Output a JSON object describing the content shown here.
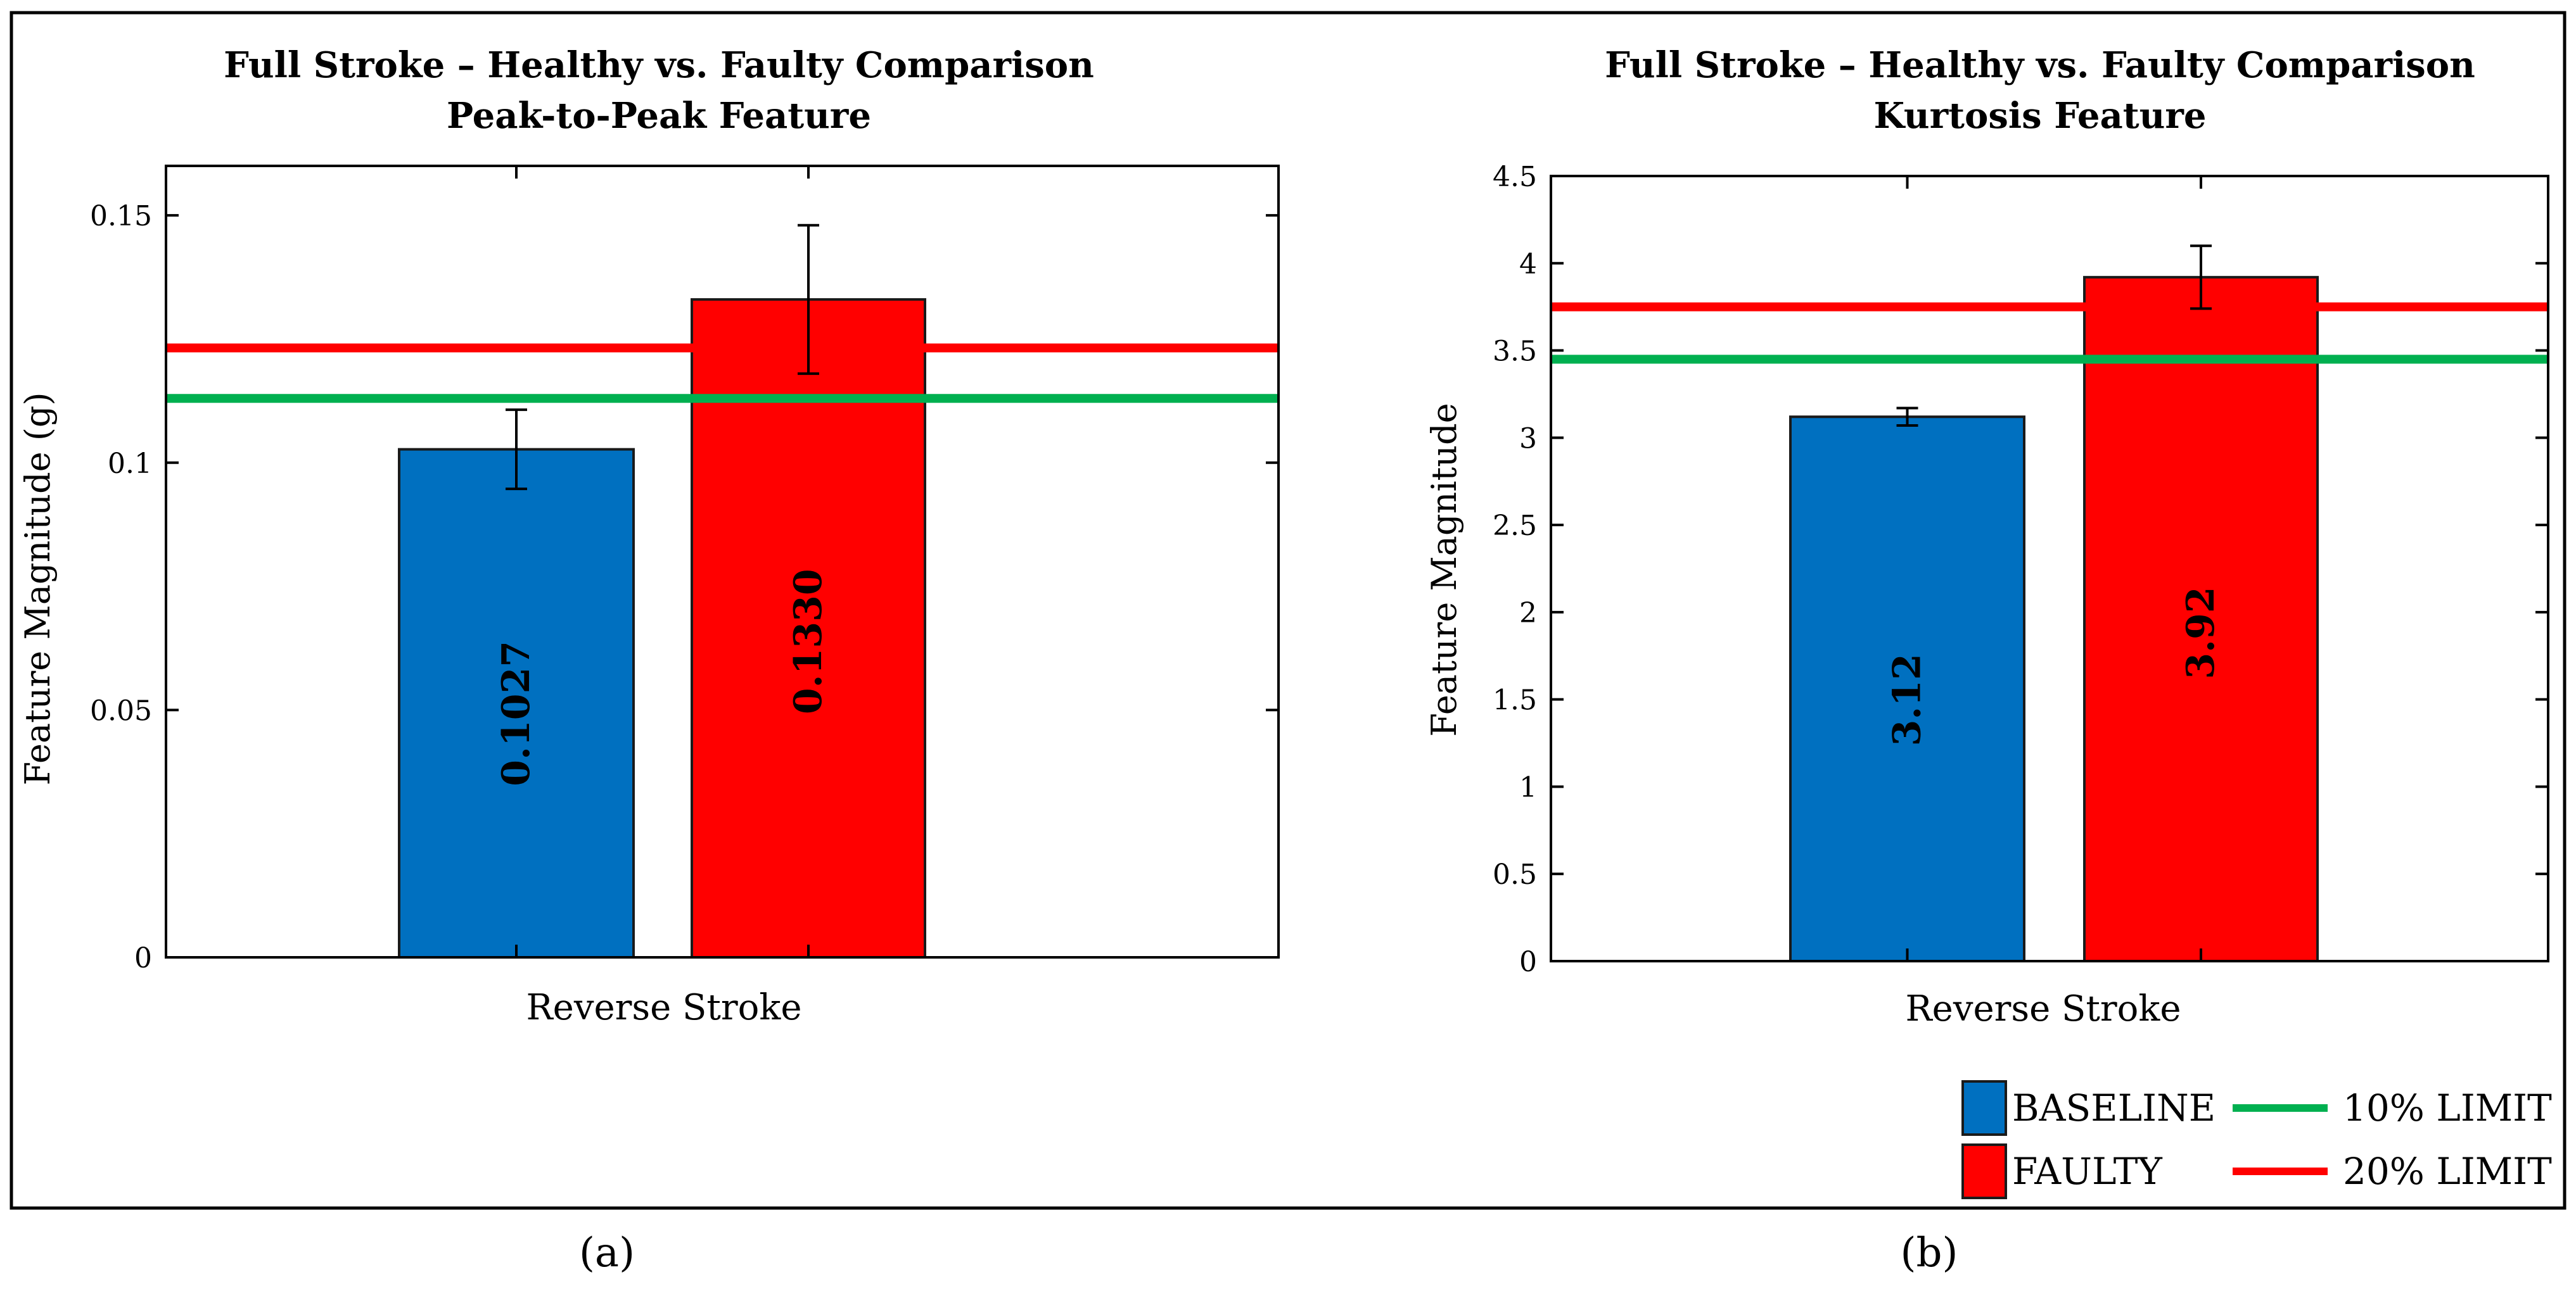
{
  "chart_data": [
    {
      "panel_label": "(a)",
      "type": "bar",
      "title": [
        "Full Stroke – Healthy vs. Faulty Comparison",
        "Peak-to-Peak Feature"
      ],
      "xlabel": "Reverse Stroke",
      "ylabel": "Feature Magnitude (g)",
      "ylim": [
        0,
        0.16
      ],
      "yticks": [
        0,
        0.05,
        0.1,
        0.15
      ],
      "ytick_labels": [
        "0",
        "0.05",
        "0.1",
        "0.15"
      ],
      "bars": [
        {
          "name": "BASELINE",
          "value": 0.1027,
          "label": "0.1027",
          "error": 0.008,
          "color": "#0070C0"
        },
        {
          "name": "FAULTY",
          "value": 0.133,
          "label": "0.1330",
          "error": 0.015,
          "color": "#FF0000"
        }
      ],
      "limits": [
        {
          "name": "10% LIMIT",
          "value": 0.113,
          "color": "#00B050"
        },
        {
          "name": "20% LIMIT",
          "value": 0.1232,
          "color": "#FF0000"
        }
      ]
    },
    {
      "panel_label": "(b)",
      "type": "bar",
      "title": [
        "Full Stroke – Healthy vs. Faulty Comparison",
        "Kurtosis Feature"
      ],
      "xlabel": "Reverse Stroke",
      "ylabel": "Feature Magnitude",
      "ylim": [
        0,
        4.5
      ],
      "yticks": [
        0,
        0.5,
        1,
        1.5,
        2,
        2.5,
        3,
        3.5,
        4,
        4.5
      ],
      "ytick_labels": [
        "0",
        "0.5",
        "1",
        "1.5",
        "2",
        "2.5",
        "3",
        "3.5",
        "4",
        "4.5"
      ],
      "bars": [
        {
          "name": "BASELINE",
          "value": 3.12,
          "label": "3.12",
          "error": 0.05,
          "color": "#0070C0"
        },
        {
          "name": "FAULTY",
          "value": 3.92,
          "label": "3.92",
          "error": 0.18,
          "color": "#FF0000"
        }
      ],
      "limits": [
        {
          "name": "10% LIMIT",
          "value": 3.45,
          "color": "#00B050"
        },
        {
          "name": "20% LIMIT",
          "value": 3.75,
          "color": "#FF0000"
        }
      ]
    }
  ],
  "legend": [
    {
      "label": "BASELINE",
      "kind": "box",
      "color": "#0070C0"
    },
    {
      "label": "10% LIMIT",
      "kind": "line",
      "color": "#00B050"
    },
    {
      "label": "FAULTY",
      "kind": "box",
      "color": "#FF0000"
    },
    {
      "label": "20% LIMIT",
      "kind": "line",
      "color": "#FF0000"
    }
  ]
}
